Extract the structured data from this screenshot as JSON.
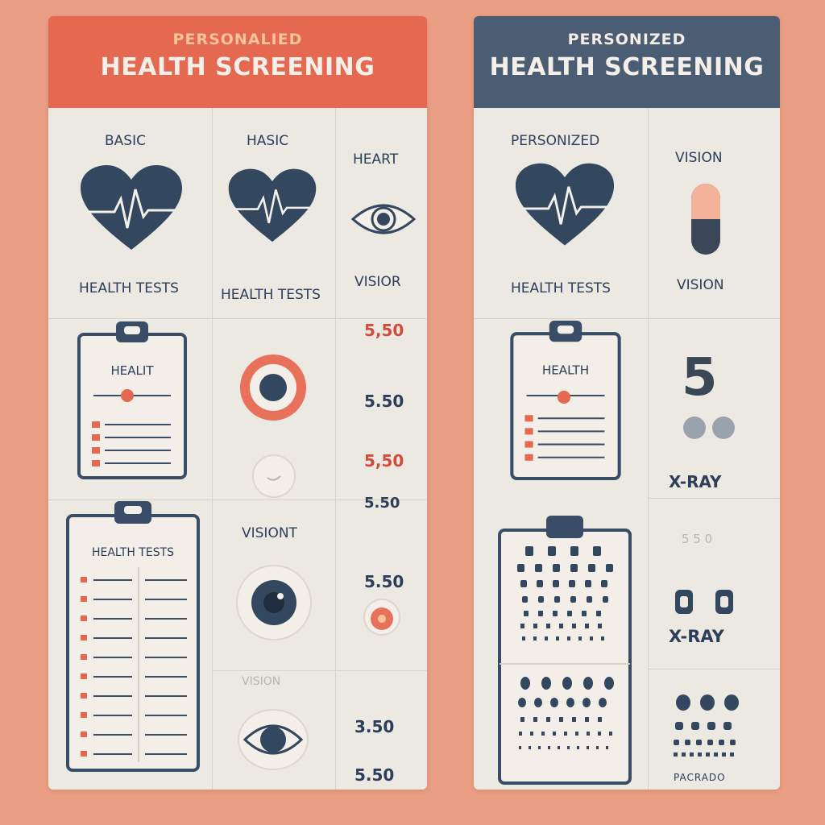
{
  "left_panel": {
    "subtitle": "PERSONALIED",
    "title": "HEALTH SCREENING",
    "col1": {
      "header": "BASIC",
      "label": "HEALTH TESTS",
      "clipboard1_title": "HEALIT",
      "clipboard2_title": "HEALTH TESTS"
    },
    "col2": {
      "header": "HASIC",
      "label": "HEALTH TESTS",
      "label_vision": "VISIONT",
      "label_faded": "VISION"
    },
    "col3": {
      "header": "HEART",
      "label": "VISIOR",
      "prices": [
        "5,50",
        "5.50",
        "5,50",
        "5.50",
        "5.50",
        "3.50",
        "5.50"
      ]
    }
  },
  "right_panel": {
    "subtitle": "PERSONIZED",
    "title": "HEALTH SCREENING",
    "col1": {
      "header": "PERSONIZED",
      "label": "HEALTH TESTS",
      "clipboard_title": "HEALTH"
    },
    "col2": {
      "header": "VISION",
      "label": "VISION",
      "xray1": "X-RAY",
      "xray2": "X-RAY",
      "faded_top": "5",
      "faded_mid": "5 5 0",
      "bottom_text": "PACRADO"
    }
  },
  "colors": {
    "background": "#ea9e84",
    "coral": "#e46950",
    "navy": "#2c3e5a",
    "slate": "#4b5d72",
    "panel": "#ece8e2"
  },
  "icons": [
    "heart-pulse-icon",
    "eye-icon",
    "clipboard-icon",
    "target-icon",
    "pill-icon",
    "eye-chart-icon"
  ]
}
